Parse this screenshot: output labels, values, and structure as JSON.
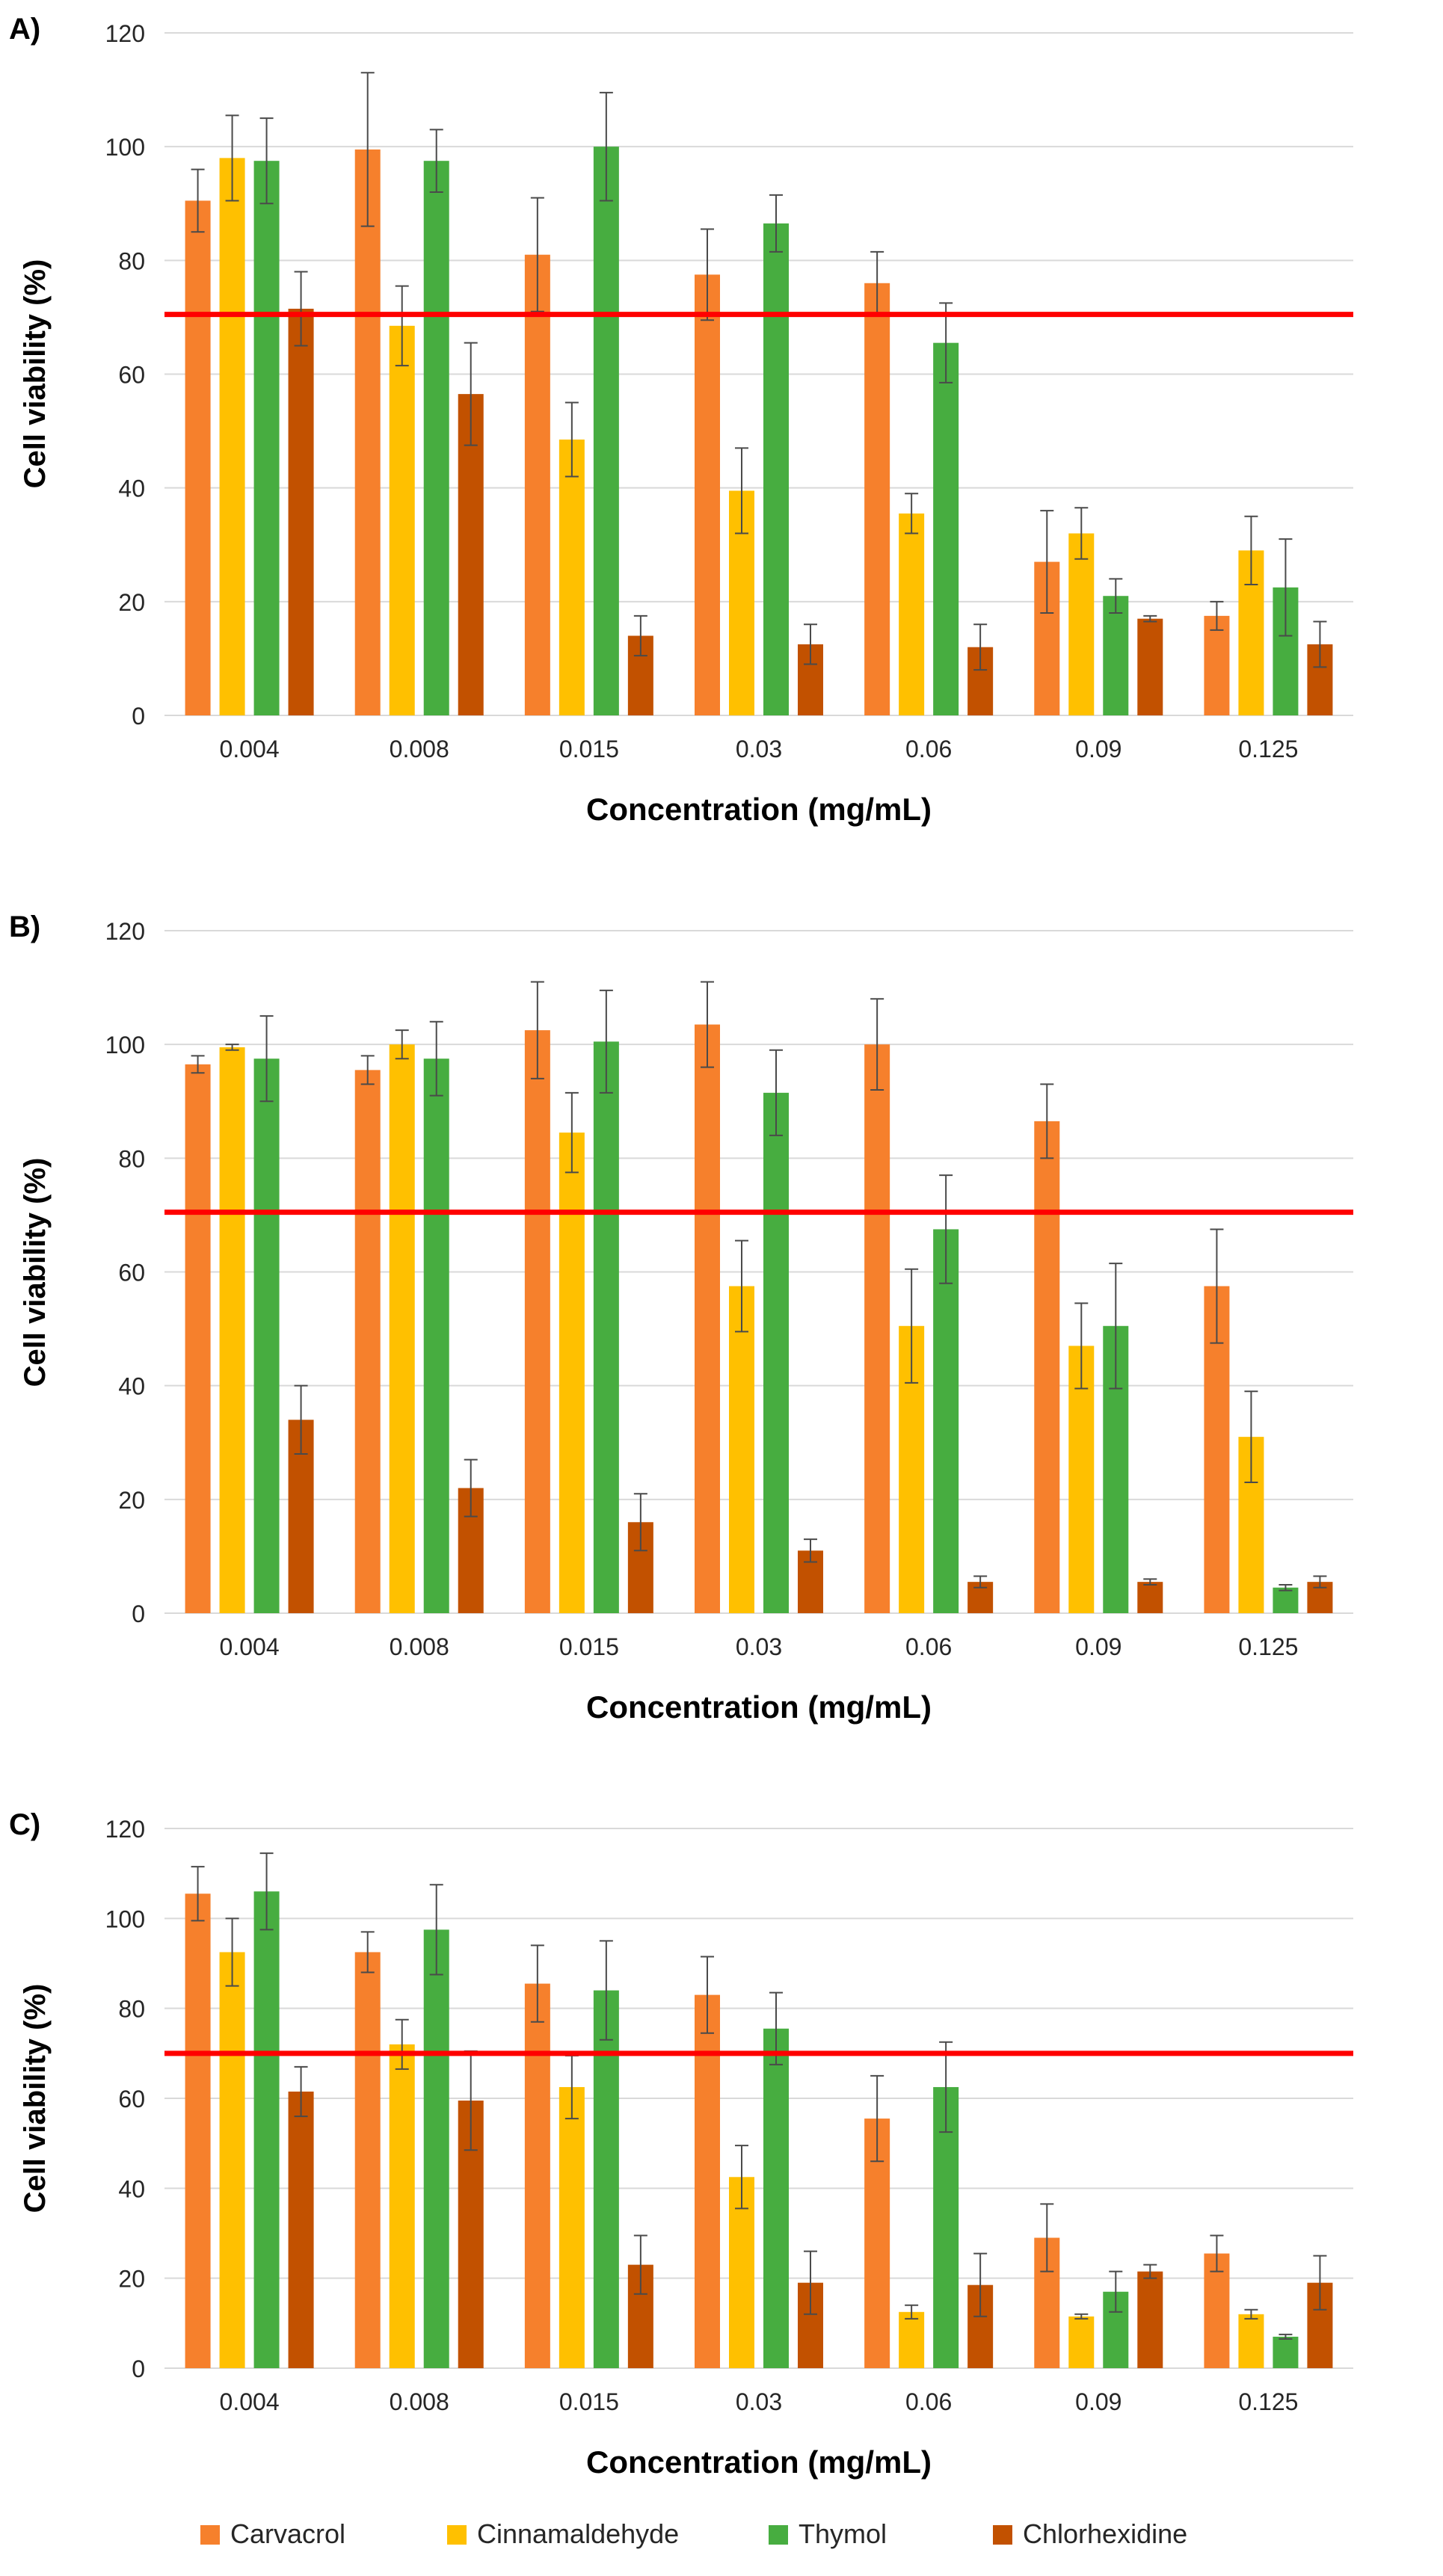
{
  "chart_data": [
    {
      "type": "bar",
      "panel_label": "A)",
      "xlabel": "Concentration (mg/mL)",
      "ylabel": "Cell viability (%)",
      "ylim": [
        0,
        120
      ],
      "yticks": [
        0,
        20,
        40,
        60,
        80,
        100,
        120
      ],
      "grid": true,
      "categories": [
        "0.004",
        "0.008",
        "0.015",
        "0.03",
        "0.06",
        "0.09",
        "0.125"
      ],
      "threshold": 70.5,
      "series": [
        {
          "name": "Carvacrol",
          "values": [
            90.5,
            99.5,
            81,
            77.5,
            76,
            27,
            17.5
          ],
          "errors": [
            5.5,
            13.5,
            10,
            8,
            5.5,
            9,
            2.5
          ]
        },
        {
          "name": "Cinnamaldehyde",
          "values": [
            98,
            68.5,
            48.5,
            39.5,
            35.5,
            32,
            29
          ],
          "errors": [
            7.5,
            7,
            6.5,
            7.5,
            3.5,
            4.5,
            6
          ]
        },
        {
          "name": "Thymol",
          "values": [
            97.5,
            97.5,
            100,
            86.5,
            65.5,
            21,
            22.5
          ],
          "errors": [
            7.5,
            5.5,
            9.5,
            5,
            7,
            3,
            8.5
          ]
        },
        {
          "name": "Chlorhexidine",
          "values": [
            71.5,
            56.5,
            14,
            12.5,
            12,
            17,
            12.5
          ],
          "errors": [
            6.5,
            9,
            3.5,
            3.5,
            4,
            0.5,
            4
          ]
        }
      ]
    },
    {
      "type": "bar",
      "panel_label": "B)",
      "xlabel": "Concentration (mg/mL)",
      "ylabel": "Cell viability (%)",
      "ylim": [
        0,
        120
      ],
      "yticks": [
        0,
        20,
        40,
        60,
        80,
        100,
        120
      ],
      "grid": true,
      "categories": [
        "0.004",
        "0.008",
        "0.015",
        "0.03",
        "0.06",
        "0.09",
        "0.125"
      ],
      "threshold": 70.5,
      "series": [
        {
          "name": "Carvacrol",
          "values": [
            96.5,
            95.5,
            102.5,
            103.5,
            100,
            86.5,
            57.5
          ],
          "errors": [
            1.5,
            2.5,
            8.5,
            7.5,
            8,
            6.5,
            10
          ]
        },
        {
          "name": "Cinnamaldehyde",
          "values": [
            99.5,
            100,
            84.5,
            57.5,
            50.5,
            47,
            31
          ],
          "errors": [
            0.5,
            2.5,
            7,
            8,
            10,
            7.5,
            8
          ]
        },
        {
          "name": "Thymol",
          "values": [
            97.5,
            97.5,
            100.5,
            91.5,
            67.5,
            50.5,
            4.5
          ],
          "errors": [
            7.5,
            6.5,
            9,
            7.5,
            9.5,
            11,
            0.5
          ]
        },
        {
          "name": "Chlorhexidine",
          "values": [
            34,
            22,
            16,
            11,
            5.5,
            5.5,
            5.5
          ],
          "errors": [
            6,
            5,
            5,
            2,
            1,
            0.5,
            1
          ]
        }
      ]
    },
    {
      "type": "bar",
      "panel_label": "C)",
      "xlabel": "Concentration (mg/mL)",
      "ylabel": "Cell viability (%)",
      "ylim": [
        0,
        120
      ],
      "yticks": [
        0,
        20,
        40,
        60,
        80,
        100,
        120
      ],
      "grid": true,
      "categories": [
        "0.004",
        "0.008",
        "0.015",
        "0.03",
        "0.06",
        "0.09",
        "0.125"
      ],
      "threshold": 70,
      "series": [
        {
          "name": "Carvacrol",
          "values": [
            105.5,
            92.5,
            85.5,
            83,
            55.5,
            29,
            25.5
          ],
          "errors": [
            6,
            4.5,
            8.5,
            8.5,
            9.5,
            7.5,
            4
          ]
        },
        {
          "name": "Cinnamaldehyde",
          "values": [
            92.5,
            72,
            62.5,
            42.5,
            12.5,
            11.5,
            12
          ],
          "errors": [
            7.5,
            5.5,
            7,
            7,
            1.5,
            0.5,
            1
          ]
        },
        {
          "name": "Thymol",
          "values": [
            106,
            97.5,
            84,
            75.5,
            62.5,
            17,
            7
          ],
          "errors": [
            8.5,
            10,
            11,
            8,
            10,
            4.5,
            0.5
          ]
        },
        {
          "name": "Chlorhexidine",
          "values": [
            61.5,
            59.5,
            23,
            19,
            18.5,
            21.5,
            19
          ],
          "errors": [
            5.5,
            11,
            6.5,
            7,
            7,
            1.5,
            6
          ]
        }
      ]
    }
  ],
  "legend": {
    "position": "bottom",
    "items": [
      {
        "name": "Carvacrol",
        "color": "#f6802c"
      },
      {
        "name": "Cinnamaldehyde",
        "color": "#ffc000"
      },
      {
        "name": "Thymol",
        "color": "#47ad40"
      },
      {
        "name": "Chlorhexidine",
        "color": "#c25100"
      }
    ]
  },
  "colors": {
    "threshold_line": "#ff0000",
    "gridline": "#d9d9d9",
    "axis_text": "#000000",
    "error_bar": "#4a4a4a"
  }
}
